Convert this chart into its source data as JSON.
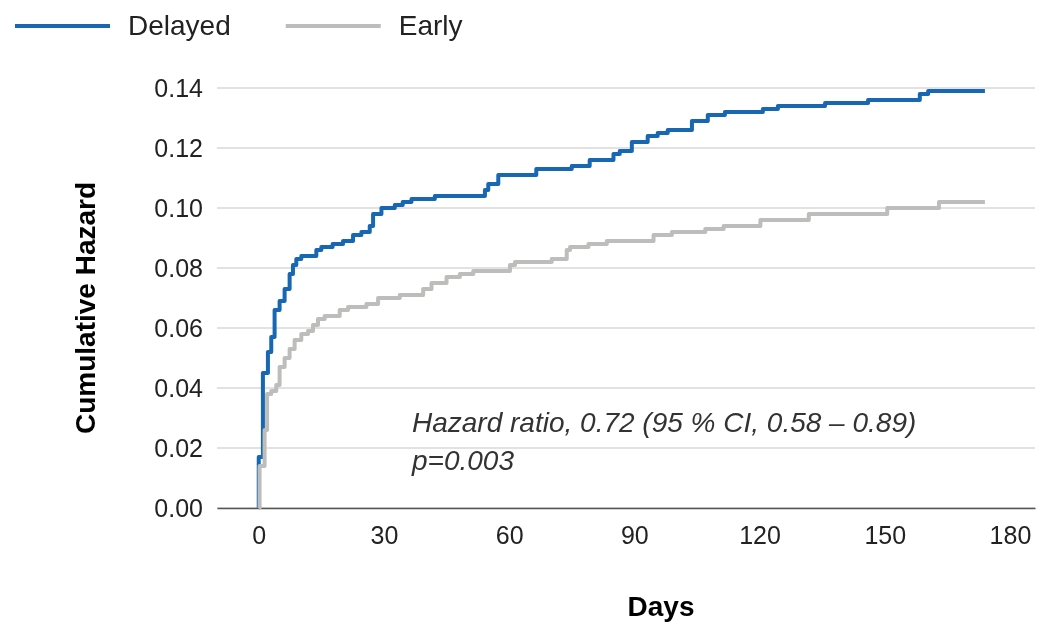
{
  "chart_data": {
    "type": "step",
    "xlabel": "Days",
    "ylabel": "Cumulative Hazard",
    "xlim": [
      -10,
      186
    ],
    "xticks": [
      0,
      30,
      60,
      90,
      120,
      150,
      180
    ],
    "ylim": [
      0,
      0.14
    ],
    "yticks": [
      {
        "value": 0,
        "label": "0.00"
      },
      {
        "value": 0.02,
        "label": "0.02"
      },
      {
        "value": 0.04,
        "label": "0.04"
      },
      {
        "value": 0.06,
        "label": "0.06"
      },
      {
        "value": 0.08,
        "label": "0.08"
      },
      {
        "value": 0.1,
        "label": "0.10"
      },
      {
        "value": 0.12,
        "label": "0.12"
      },
      {
        "value": 0.14,
        "label": "0.14"
      }
    ],
    "grid": "y",
    "legend": "top left",
    "annotations": [
      "Hazard ratio, 0.72 (95 % CI, 0.58 – 0.89)",
      "p=0.003"
    ],
    "series": [
      {
        "name": "Delayed",
        "color": "#1767b3",
        "x": [
          0,
          0,
          1,
          2.2,
          3,
          3.8,
          5,
          6.2,
          7.4,
          8.2,
          9,
          10.2,
          13.8,
          15,
          17.7,
          20.2,
          22.6,
          24.6,
          26.6,
          27.4,
          29.4,
          32.6,
          34.5,
          36.6,
          42.2,
          54.2,
          55,
          57.4,
          66.5,
          75,
          79.3,
          85,
          86.5,
          89.4,
          93.2,
          95.6,
          98,
          103.8,
          107.6,
          111.7,
          120.8,
          124.4,
          135.7,
          146,
          158.4,
          160.4,
          174
        ],
        "values": [
          0,
          0.017,
          0.045,
          0.052,
          0.057,
          0.066,
          0.069,
          0.073,
          0.078,
          0.081,
          0.083,
          0.084,
          0.086,
          0.087,
          0.088,
          0.089,
          0.091,
          0.092,
          0.094,
          0.098,
          0.1,
          0.101,
          0.102,
          0.103,
          0.104,
          0.106,
          0.108,
          0.111,
          0.113,
          0.114,
          0.116,
          0.118,
          0.119,
          0.122,
          0.124,
          0.125,
          0.126,
          0.129,
          0.131,
          0.132,
          0.133,
          0.134,
          0.135,
          0.136,
          0.138,
          0.139,
          0.139
        ]
      },
      {
        "name": "Early",
        "color": "#bdbdbb",
        "x": [
          0,
          0.2,
          1.4,
          2,
          3,
          4.2,
          5,
          6.2,
          7.4,
          8.6,
          10.2,
          11.8,
          13,
          14.2,
          15.8,
          19.4,
          21.4,
          25.8,
          28.6,
          33.8,
          39.4,
          41.4,
          45,
          48.2,
          51.4,
          60.2,
          61.4,
          70.2,
          73.8,
          74.6,
          79,
          83.4,
          94.6,
          99,
          107,
          111.4,
          120.2,
          131.8,
          137,
          150.6,
          163,
          174
        ],
        "values": [
          0,
          0.014,
          0.026,
          0.038,
          0.039,
          0.041,
          0.047,
          0.05,
          0.053,
          0.056,
          0.058,
          0.059,
          0.061,
          0.063,
          0.064,
          0.066,
          0.067,
          0.068,
          0.07,
          0.071,
          0.073,
          0.075,
          0.077,
          0.078,
          0.079,
          0.081,
          0.082,
          0.083,
          0.086,
          0.087,
          0.088,
          0.089,
          0.091,
          0.092,
          0.093,
          0.094,
          0.096,
          0.098,
          0.098,
          0.1,
          0.102,
          0.102
        ]
      }
    ]
  }
}
